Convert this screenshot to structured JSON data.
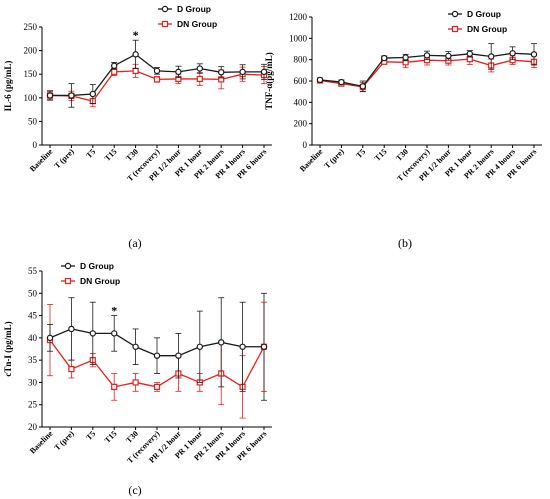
{
  "chart_data": [
    {
      "type": "line",
      "panel_label": "(a)",
      "ylabel": "IL-6 (pg/mL)",
      "ylim": [
        0,
        250
      ],
      "yticks": [
        0,
        50,
        100,
        150,
        200,
        250
      ],
      "categories": [
        "Baseline",
        "T (pre)",
        "T5",
        "T15",
        "T30",
        "T (recovery)",
        "PR 1/2 hour",
        "PR 1 hour",
        "PR 2 hours",
        "PR 4 hours",
        "PR 6 hours"
      ],
      "legend": "top-right",
      "series": [
        {
          "name": "D Group",
          "color": "#1a1a1a",
          "marker": "circle",
          "values": [
            105,
            105,
            108,
            168,
            192,
            157,
            155,
            162,
            154,
            155,
            155
          ],
          "errors": [
            10,
            25,
            20,
            7,
            30,
            7,
            12,
            10,
            12,
            15,
            16
          ]
        },
        {
          "name": "DN Group",
          "color": "#e8201a",
          "marker": "square",
          "values": [
            105,
            104,
            93,
            155,
            157,
            139,
            140,
            140,
            139,
            150,
            148
          ],
          "errors": [
            8,
            10,
            12,
            8,
            14,
            6,
            10,
            14,
            20,
            15,
            18
          ]
        }
      ],
      "annotations": [
        {
          "category": "T30",
          "text": "*"
        }
      ]
    },
    {
      "type": "line",
      "panel_label": "(b)",
      "ylabel": "TNF-α(pg/mL)",
      "ylim": [
        0,
        1200
      ],
      "yticks": [
        0,
        200,
        400,
        600,
        800,
        1000,
        1200
      ],
      "categories": [
        "Baseline",
        "T (pre)",
        "T5",
        "T15",
        "T30",
        "T (recovery)",
        "PR 1/2 hour",
        "PR 1 hour",
        "PR 2 hours",
        "PR 4 hours",
        "PR 6 hours"
      ],
      "legend": "top-right",
      "series": [
        {
          "name": "D Group",
          "color": "#1a1a1a",
          "marker": "circle",
          "values": [
            610,
            590,
            550,
            815,
            820,
            840,
            835,
            855,
            830,
            860,
            850
          ],
          "errors": [
            10,
            20,
            50,
            20,
            30,
            40,
            40,
            30,
            120,
            60,
            100
          ]
        },
        {
          "name": "DN Group",
          "color": "#e8201a",
          "marker": "square",
          "values": [
            605,
            575,
            545,
            780,
            775,
            795,
            790,
            805,
            745,
            795,
            780
          ],
          "errors": [
            10,
            15,
            40,
            20,
            50,
            45,
            40,
            50,
            60,
            40,
            55
          ]
        }
      ]
    },
    {
      "type": "line",
      "panel_label": "(c)",
      "ylabel": "cTn-I (pg/mL)",
      "ylim": [
        20,
        55
      ],
      "yticks": [
        20,
        25,
        30,
        35,
        40,
        45,
        50,
        55
      ],
      "categories": [
        "Baseline",
        "T (pre)",
        "T5",
        "T15",
        "T30",
        "T (recovery)",
        "PR 1/2 hour",
        "PR 1 hour",
        "PR 2 hours",
        "PR 4 hours",
        "PR 6 hours"
      ],
      "legend": "top-left",
      "series": [
        {
          "name": "D Group",
          "color": "#1a1a1a",
          "marker": "circle",
          "values": [
            40,
            42,
            41,
            41,
            38,
            36,
            36,
            38,
            39,
            38,
            38
          ],
          "errors": [
            3,
            7,
            7,
            4,
            4,
            4,
            5,
            8,
            10,
            10,
            12
          ]
        },
        {
          "name": "DN Group",
          "color": "#e8201a",
          "marker": "square",
          "values": [
            39.5,
            33,
            35,
            29,
            30,
            29,
            32,
            30,
            32,
            29,
            38
          ],
          "errors": [
            8,
            2,
            1.5,
            3,
            2,
            1,
            4,
            2,
            7,
            7,
            10
          ]
        }
      ],
      "annotations": [
        {
          "category": "T15",
          "text": "*"
        }
      ]
    }
  ]
}
